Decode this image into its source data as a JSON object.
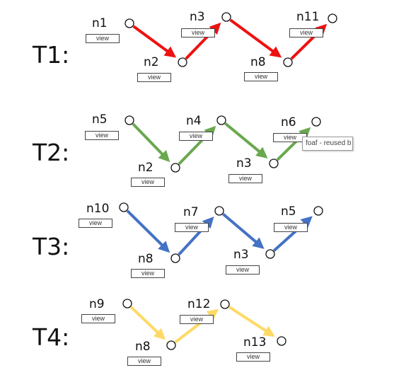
{
  "colors": {
    "T1": "#ee1111",
    "T2": "#6aa84f",
    "T3": "#4472c4",
    "T4": "#ffd966",
    "node_stroke": "#111111",
    "node_fill": "#ffffff"
  },
  "rows": [
    {
      "label": "T1:",
      "nodes": [
        "n1",
        "n2",
        "n3",
        "n8",
        "n11"
      ]
    },
    {
      "label": "T2:",
      "nodes": [
        "n5",
        "n2",
        "n4",
        "n3",
        "n6"
      ]
    },
    {
      "label": "T3:",
      "nodes": [
        "n10",
        "n8",
        "n7",
        "n3",
        "n5"
      ]
    },
    {
      "label": "T4:",
      "nodes": [
        "n9",
        "n8",
        "n12",
        "n13"
      ]
    }
  ],
  "view_label": "view",
  "tooltip": "foaf - reused b"
}
